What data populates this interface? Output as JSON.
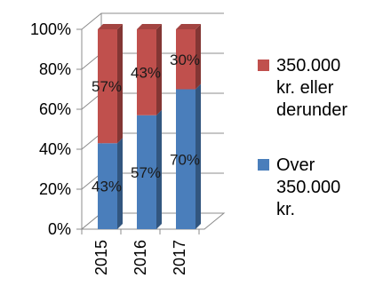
{
  "chart_data": {
    "type": "bar",
    "stacked": true,
    "percent": true,
    "categories": [
      "2015",
      "2016",
      "2017"
    ],
    "series": [
      {
        "name": "Over 350.000 kr.",
        "values": [
          43,
          57,
          70
        ],
        "labels": [
          "43%",
          "57%",
          "70%"
        ],
        "color": "#4a7ebb"
      },
      {
        "name": "350.000 kr. eller derunder",
        "values": [
          57,
          43,
          30
        ],
        "labels": [
          "57%",
          "43%",
          "30%"
        ],
        "color": "#c0504d"
      }
    ],
    "yticks": [
      "0%",
      "20%",
      "40%",
      "60%",
      "80%",
      "100%"
    ],
    "ylim": [
      0,
      100
    ],
    "legend": {
      "placement": "right",
      "items": [
        {
          "series": 1,
          "lines": [
            "350.000",
            "kr. eller",
            "derunder"
          ]
        },
        {
          "series": 0,
          "lines": [
            "Over",
            "350.000",
            "kr."
          ]
        }
      ]
    },
    "grid": true
  }
}
